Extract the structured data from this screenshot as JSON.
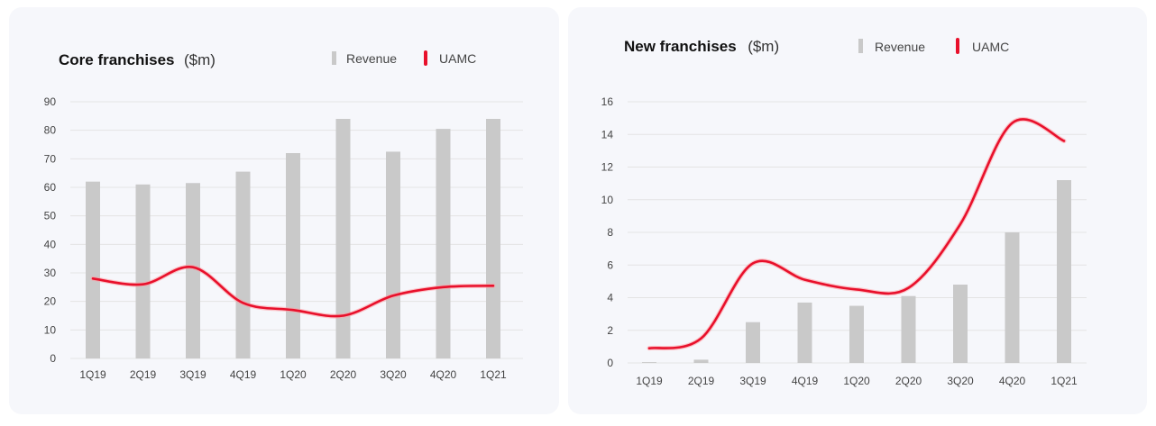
{
  "colors": {
    "revenue_bar": "#c9c9c9",
    "uamc_line": "#e8102b",
    "gridline": "#e4e4e4",
    "background": "#f6f7fb"
  },
  "chart_data": [
    {
      "type": "bar",
      "title": "Core franchises",
      "title_unit": "($m)",
      "categories": [
        "1Q19",
        "2Q19",
        "3Q19",
        "4Q19",
        "1Q20",
        "2Q20",
        "3Q20",
        "4Q20",
        "1Q21"
      ],
      "series": [
        {
          "name": "Revenue",
          "kind": "bar",
          "values": [
            62,
            61,
            61.5,
            65.5,
            72,
            84,
            72.5,
            80.5,
            84
          ]
        },
        {
          "name": "UAMC",
          "kind": "line",
          "values": [
            28,
            26,
            32,
            19.5,
            17,
            15,
            22,
            25,
            25.5
          ]
        }
      ],
      "ylim": [
        0,
        90
      ],
      "yticks": [
        0,
        10,
        20,
        30,
        40,
        50,
        60,
        70,
        80,
        90
      ],
      "xlabel": "",
      "ylabel": "",
      "legend": [
        "Revenue",
        "UAMC"
      ],
      "legend_position": "top-right",
      "grid": true
    },
    {
      "type": "bar",
      "title": "New franchises",
      "title_unit": "($m)",
      "categories": [
        "1Q19",
        "2Q19",
        "3Q19",
        "4Q19",
        "1Q20",
        "2Q20",
        "3Q20",
        "4Q20",
        "1Q21"
      ],
      "series": [
        {
          "name": "Revenue",
          "kind": "bar",
          "values": [
            0.05,
            0.2,
            2.5,
            3.7,
            3.5,
            4.1,
            4.8,
            8.0,
            11.2
          ]
        },
        {
          "name": "UAMC",
          "kind": "line",
          "values": [
            0.9,
            1.5,
            6.1,
            5.1,
            4.5,
            4.6,
            8.5,
            14.7,
            13.6
          ]
        }
      ],
      "ylim": [
        0,
        16
      ],
      "yticks": [
        0,
        2,
        4,
        6,
        8,
        10,
        12,
        14,
        16
      ],
      "xlabel": "",
      "ylabel": "",
      "legend": [
        "Revenue",
        "UAMC"
      ],
      "legend_position": "top-right",
      "grid": true
    }
  ]
}
